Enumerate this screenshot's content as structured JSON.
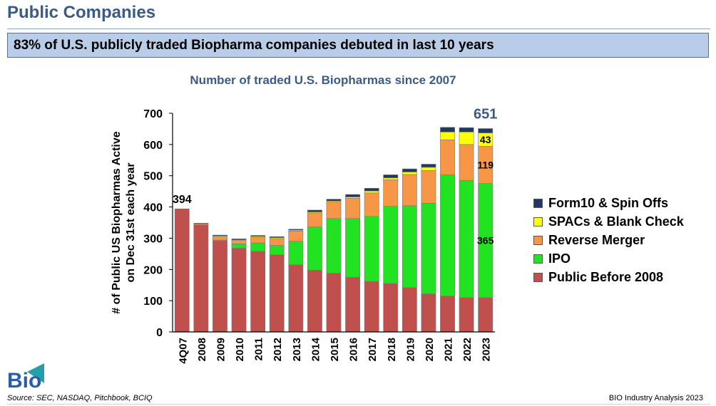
{
  "page": {
    "title": "Public Companies",
    "headline": "83% of U.S. publicly traded Biopharma companies debuted in last 10 years",
    "source": "Source: SEC, NASDAQ, Pitchbook, BCIQ",
    "credit": "BIO Industry Analysis 2023",
    "logo_text": "Bio"
  },
  "chart_data": {
    "type": "bar",
    "stacked": true,
    "title": "Number of traded U.S. Biopharmas since 2007",
    "xlabel": "",
    "ylabel": "# of Public US Biopharmas Active on Dec 31st each year",
    "ylim": [
      0,
      700
    ],
    "yticks": [
      0,
      100,
      200,
      300,
      400,
      500,
      600,
      700
    ],
    "legend_position": "right",
    "categories": [
      "4Q07",
      "2008",
      "2009",
      "2010",
      "2011",
      "2012",
      "2013",
      "2014",
      "2015",
      "2016",
      "2017",
      "2018",
      "2019",
      "2020",
      "2021",
      "2022",
      "2023"
    ],
    "series": [
      {
        "name": "Public Before 2008",
        "color": "#c0504d",
        "values": [
          394,
          343,
          292,
          268,
          258,
          247,
          215,
          198,
          188,
          175,
          162,
          155,
          142,
          122,
          115,
          110,
          110
        ]
      },
      {
        "name": "IPO",
        "color": "#22e322",
        "values": [
          0,
          0,
          2,
          14,
          27,
          30,
          75,
          138,
          175,
          188,
          208,
          247,
          262,
          290,
          388,
          375,
          365
        ]
      },
      {
        "name": "Reverse Merger",
        "color": "#f79646",
        "values": [
          0,
          3,
          10,
          12,
          18,
          22,
          33,
          45,
          53,
          65,
          75,
          85,
          100,
          105,
          112,
          115,
          119
        ]
      },
      {
        "name": "SPACs & Blank Check",
        "color": "#ffff00",
        "values": [
          0,
          0,
          3,
          1,
          3,
          3,
          3,
          3,
          3,
          4,
          6,
          6,
          8,
          10,
          25,
          40,
          43
        ]
      },
      {
        "name": "Form10 & Spin Offs",
        "color": "#1f3864",
        "values": [
          0,
          2,
          3,
          3,
          3,
          3,
          3,
          6,
          6,
          8,
          9,
          10,
          10,
          10,
          15,
          14,
          14
        ]
      }
    ],
    "data_labels": [
      {
        "category": "4Q07",
        "text": "394"
      },
      {
        "category": "2023",
        "text": "651"
      },
      {
        "category": "2023",
        "series": "SPACs & Blank Check",
        "text": "43"
      },
      {
        "category": "2023",
        "series": "Reverse Merger",
        "text": "119"
      },
      {
        "category": "2023",
        "series": "IPO",
        "text": "365"
      }
    ]
  }
}
